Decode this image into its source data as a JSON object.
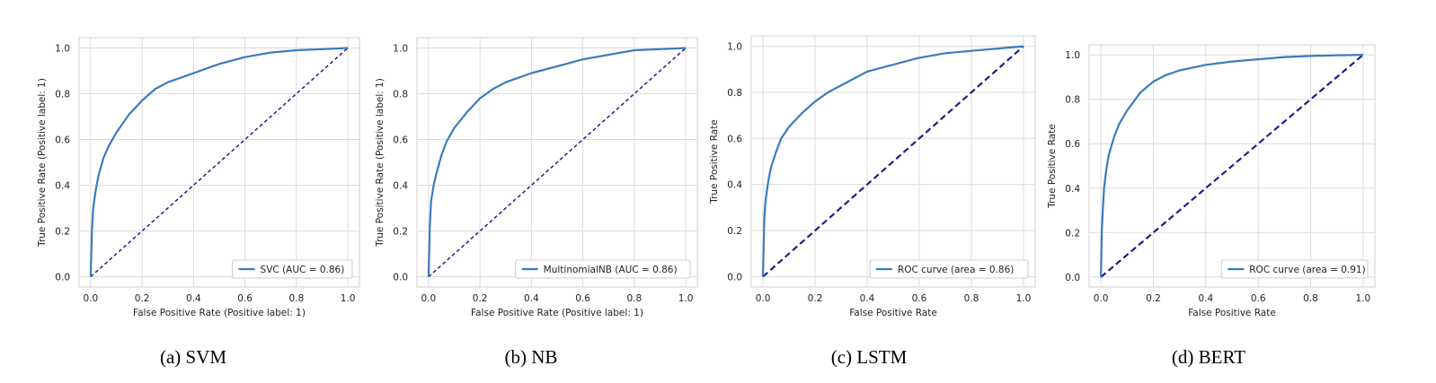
{
  "captions": [
    "(a) SVM",
    "(b) NB",
    "(c) LSTM",
    "(d) BERT"
  ],
  "colors": {
    "roc": "#3a7bbf",
    "diagonal": "#1f1f8a",
    "grid": "#dcdcdc"
  },
  "chart_data": [
    {
      "type": "line",
      "xlabel": "False Positive Rate (Positive label: 1)",
      "ylabel": "True Positive Rate (Positive label: 1)",
      "xlim": [
        0,
        1
      ],
      "ylim": [
        0,
        1
      ],
      "xticks": [
        "0.0",
        "0.2",
        "0.4",
        "0.6",
        "0.8",
        "1.0"
      ],
      "yticks": [
        "0.0",
        "0.2",
        "0.4",
        "0.6",
        "0.8",
        "1.0"
      ],
      "grid": true,
      "legend_position": "bottom-right",
      "series": [
        {
          "name": "SVC (AUC = 0.86)",
          "x": [
            0,
            0.005,
            0.01,
            0.02,
            0.03,
            0.05,
            0.07,
            0.1,
            0.15,
            0.2,
            0.25,
            0.3,
            0.4,
            0.5,
            0.6,
            0.7,
            0.8,
            0.9,
            1.0
          ],
          "y": [
            0,
            0.2,
            0.3,
            0.38,
            0.44,
            0.52,
            0.57,
            0.63,
            0.71,
            0.77,
            0.82,
            0.85,
            0.89,
            0.93,
            0.96,
            0.98,
            0.99,
            0.995,
            1.0
          ]
        }
      ],
      "diagonal": {
        "x": [
          0,
          1
        ],
        "y": [
          0,
          1
        ]
      }
    },
    {
      "type": "line",
      "xlabel": "False Positive Rate (Positive label: 1)",
      "ylabel": "True Positive Rate (Positive label: 1)",
      "xlim": [
        0,
        1
      ],
      "ylim": [
        0,
        1
      ],
      "xticks": [
        "0.0",
        "0.2",
        "0.4",
        "0.6",
        "0.8",
        "1.0"
      ],
      "yticks": [
        "0.0",
        "0.2",
        "0.4",
        "0.6",
        "0.8",
        "1.0"
      ],
      "grid": true,
      "legend_position": "bottom-right",
      "series": [
        {
          "name": "MultinomialNB (AUC = 0.86)",
          "x": [
            0,
            0.005,
            0.01,
            0.02,
            0.03,
            0.05,
            0.07,
            0.1,
            0.15,
            0.2,
            0.25,
            0.3,
            0.4,
            0.5,
            0.6,
            0.7,
            0.8,
            0.9,
            1.0
          ],
          "y": [
            0,
            0.22,
            0.33,
            0.4,
            0.45,
            0.53,
            0.59,
            0.65,
            0.72,
            0.78,
            0.82,
            0.85,
            0.89,
            0.92,
            0.95,
            0.97,
            0.99,
            0.995,
            1.0
          ]
        }
      ],
      "diagonal": {
        "x": [
          0,
          1
        ],
        "y": [
          0,
          1
        ]
      }
    },
    {
      "type": "line",
      "xlabel": "False Positive Rate",
      "ylabel": "True Positive Rate",
      "xlim": [
        0,
        1
      ],
      "ylim": [
        0,
        1
      ],
      "xticks": [
        "0.0",
        "0.2",
        "0.4",
        "0.6",
        "0.8",
        "1.0"
      ],
      "yticks": [
        "0.0",
        "0.2",
        "0.4",
        "0.6",
        "0.8",
        "1.0"
      ],
      "grid": true,
      "legend_position": "bottom-right",
      "series": [
        {
          "name": "ROC curve (area = 0.86)",
          "x": [
            0,
            0.005,
            0.01,
            0.02,
            0.03,
            0.05,
            0.07,
            0.1,
            0.15,
            0.2,
            0.25,
            0.3,
            0.35,
            0.4,
            0.5,
            0.6,
            0.7,
            0.8,
            0.9,
            1.0
          ],
          "y": [
            0,
            0.25,
            0.33,
            0.41,
            0.47,
            0.54,
            0.6,
            0.65,
            0.71,
            0.76,
            0.8,
            0.83,
            0.86,
            0.89,
            0.92,
            0.95,
            0.97,
            0.98,
            0.99,
            1.0
          ]
        }
      ],
      "diagonal": {
        "x": [
          0,
          1
        ],
        "y": [
          0,
          1
        ]
      }
    },
    {
      "type": "line",
      "xlabel": "False Positive Rate",
      "ylabel": "True Positive Rate",
      "xlim": [
        0,
        1
      ],
      "ylim": [
        0,
        1
      ],
      "xticks": [
        "0.0",
        "0.2",
        "0.4",
        "0.6",
        "0.8",
        "1.0"
      ],
      "yticks": [
        "0.0",
        "0.2",
        "0.4",
        "0.6",
        "0.8",
        "1.0"
      ],
      "grid": true,
      "legend_position": "bottom-right",
      "series": [
        {
          "name": "ROC curve (area = 0.91)",
          "x": [
            0,
            0.003,
            0.007,
            0.012,
            0.02,
            0.03,
            0.05,
            0.07,
            0.1,
            0.15,
            0.2,
            0.25,
            0.3,
            0.4,
            0.5,
            0.6,
            0.7,
            0.8,
            0.9,
            1.0
          ],
          "y": [
            0,
            0.2,
            0.3,
            0.4,
            0.48,
            0.55,
            0.63,
            0.69,
            0.75,
            0.83,
            0.88,
            0.91,
            0.93,
            0.955,
            0.97,
            0.98,
            0.99,
            0.995,
            0.998,
            1.0
          ]
        }
      ],
      "diagonal": {
        "x": [
          0,
          1
        ],
        "y": [
          0,
          1
        ]
      }
    }
  ]
}
